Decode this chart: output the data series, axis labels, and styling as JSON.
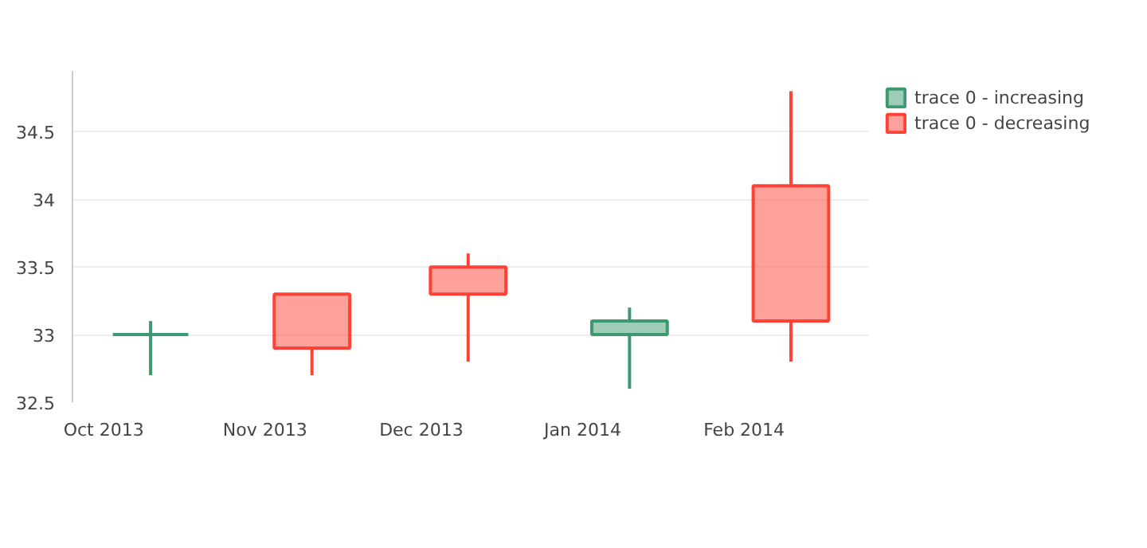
{
  "chart_data": {
    "type": "candlestick",
    "series": [
      {
        "name": "trace 0 - increasing",
        "color": "#3d9970",
        "x": [
          "2013-10-10",
          "2014-01-10"
        ],
        "ohlc": [
          [
            33.0,
            33.1,
            32.7,
            33.0
          ],
          [
            33.0,
            33.2,
            32.6,
            33.1
          ]
        ]
      },
      {
        "name": "trace 0 - decreasing",
        "color": "#ff4136",
        "x": [
          "2013-11-10",
          "2013-12-10",
          "2014-02-10"
        ],
        "ohlc": [
          [
            33.3,
            33.3,
            32.7,
            32.9
          ],
          [
            33.5,
            33.6,
            32.8,
            33.3
          ],
          [
            34.1,
            34.8,
            32.8,
            33.1
          ]
        ]
      }
    ],
    "xlim": [
      "2013-09-25",
      "2014-02-25"
    ],
    "xticks": [
      {
        "value": "2013-10-01",
        "label": "Oct 2013"
      },
      {
        "value": "2013-11-01",
        "label": "Nov 2013"
      },
      {
        "value": "2013-12-01",
        "label": "Dec 2013"
      },
      {
        "value": "2014-01-01",
        "label": "Jan 2014"
      },
      {
        "value": "2014-02-01",
        "label": "Feb 2014"
      }
    ],
    "ylim": [
      32.5,
      34.95
    ],
    "yticks": [
      32.5,
      33,
      33.5,
      34,
      34.5
    ],
    "grid": "y",
    "legend": "top right"
  }
}
